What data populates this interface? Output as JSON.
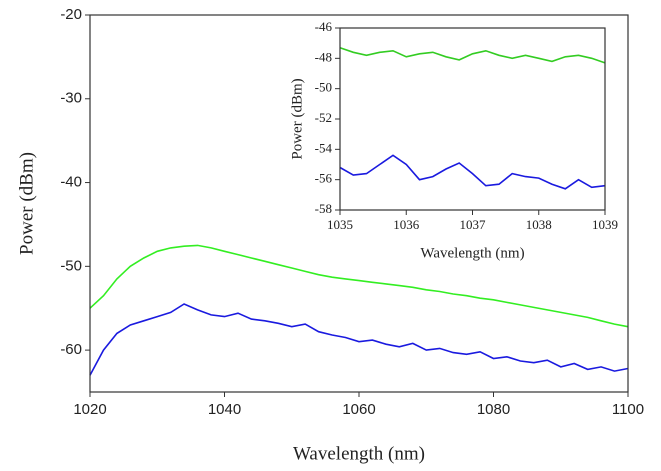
{
  "chart_data": [
    {
      "type": "line",
      "xlabel": "Wavelength (nm)",
      "ylabel": "Power (dBm)",
      "xlim": [
        1020,
        1100
      ],
      "xticks": [
        1020,
        1040,
        1060,
        1080,
        1100
      ],
      "ylim": [
        -65,
        -20
      ],
      "yticks": [
        -60,
        -50,
        -40,
        -30,
        -20
      ],
      "x": [
        1020,
        1022,
        1024,
        1026,
        1028,
        1030,
        1032,
        1034,
        1036,
        1038,
        1040,
        1042,
        1044,
        1046,
        1048,
        1050,
        1052,
        1054,
        1056,
        1058,
        1060,
        1062,
        1064,
        1066,
        1068,
        1070,
        1072,
        1074,
        1076,
        1078,
        1080,
        1082,
        1084,
        1086,
        1088,
        1090,
        1092,
        1094,
        1096,
        1098,
        1100
      ],
      "series": [
        {
          "color": "#33ee22",
          "values": [
            -55,
            -53.5,
            -51.5,
            -50,
            -49,
            -48.2,
            -47.8,
            -47.6,
            -47.5,
            -47.8,
            -48.2,
            -48.6,
            -49,
            -49.4,
            -49.8,
            -50.2,
            -50.6,
            -51,
            -51.3,
            -51.5,
            -51.7,
            -51.9,
            -52.1,
            -52.3,
            -52.5,
            -52.8,
            -53,
            -53.3,
            -53.5,
            -53.8,
            -54,
            -54.3,
            -54.6,
            -54.9,
            -55.2,
            -55.5,
            -55.8,
            -56.1,
            -56.5,
            -56.9,
            -57.2
          ]
        },
        {
          "color": "#1a1adf",
          "values": [
            -63,
            -60,
            -58,
            -57,
            -56.5,
            -56,
            -55.5,
            -54.5,
            -55.2,
            -55.8,
            -56,
            -55.6,
            -56.3,
            -56.5,
            -56.8,
            -57.2,
            -56.9,
            -57.8,
            -58.2,
            -58.5,
            -59,
            -58.8,
            -59.3,
            -59.6,
            -59.2,
            -60,
            -59.8,
            -60.3,
            -60.5,
            -60.2,
            -61,
            -60.8,
            -61.3,
            -61.5,
            -61.2,
            -62,
            -61.6,
            -62.3,
            -62,
            -62.5,
            -62.2
          ]
        }
      ]
    },
    {
      "type": "line",
      "xlabel": "Wavelength (nm)",
      "ylabel": "Power (dBm)",
      "xlim": [
        1035,
        1039
      ],
      "xticks": [
        1035,
        1036,
        1037,
        1038,
        1039
      ],
      "ylim": [
        -58,
        -46
      ],
      "yticks": [
        -58,
        -56,
        -54,
        -52,
        -50,
        -48,
        -46
      ],
      "x": [
        1035,
        1035.2,
        1035.4,
        1035.6,
        1035.8,
        1036,
        1036.2,
        1036.4,
        1036.6,
        1036.8,
        1037,
        1037.2,
        1037.4,
        1037.6,
        1037.8,
        1038,
        1038.2,
        1038.4,
        1038.6,
        1038.8,
        1039
      ],
      "series": [
        {
          "color": "#33cc22",
          "values": [
            -47.3,
            -47.6,
            -47.8,
            -47.6,
            -47.5,
            -47.9,
            -47.7,
            -47.6,
            -47.9,
            -48.1,
            -47.7,
            -47.5,
            -47.8,
            -48.0,
            -47.8,
            -48.0,
            -48.2,
            -47.9,
            -47.8,
            -48.0,
            -48.3
          ]
        },
        {
          "color": "#1a1adf",
          "values": [
            -55.2,
            -55.7,
            -55.6,
            -55.0,
            -54.4,
            -55.0,
            -56.0,
            -55.8,
            -55.3,
            -54.9,
            -55.6,
            -56.4,
            -56.3,
            -55.6,
            -55.8,
            -55.9,
            -56.3,
            -56.6,
            -56.0,
            -56.5,
            -56.4
          ]
        }
      ]
    }
  ]
}
